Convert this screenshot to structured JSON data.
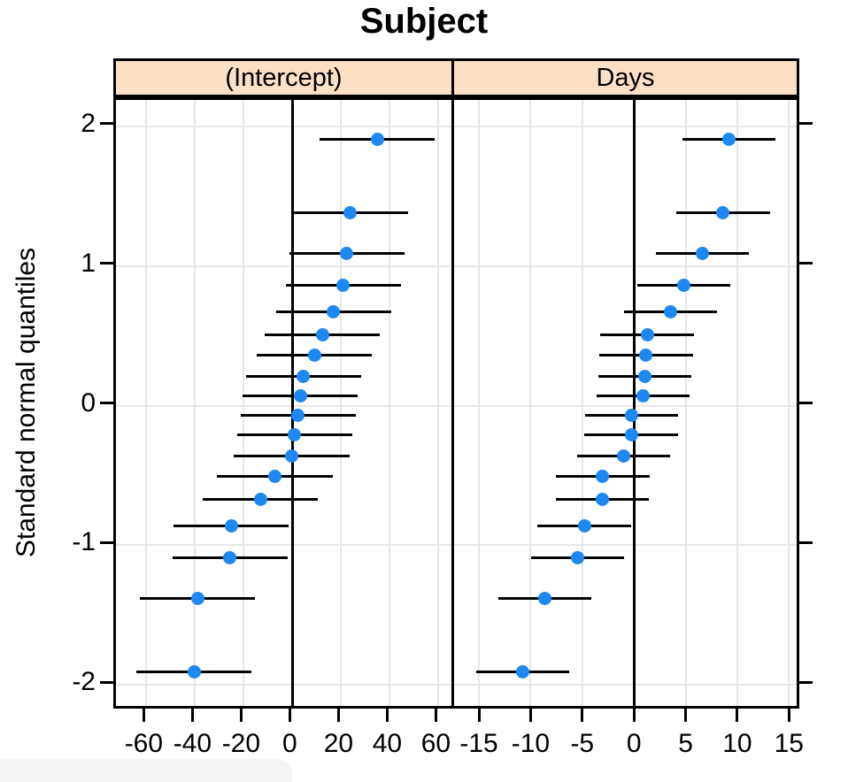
{
  "title": "Subject",
  "ylabel": "Standard normal quantiles",
  "colors": {
    "dot": "#1e88f2",
    "strip_bg": "#fbe0c4",
    "grid": "#e7e7e7",
    "line": "#000000"
  },
  "chart_data": {
    "type": "scatter",
    "subtype": "caterpillar-dotplot-with-error-bars",
    "title": "Subject",
    "ylabel": "Standard normal quantiles",
    "grid": true,
    "yticks": [
      -2,
      -1,
      0,
      1,
      2
    ],
    "ylim": [
      -2.19,
      2.19
    ],
    "quantiles": [
      -1.91,
      -1.38,
      -1.09,
      -0.86,
      -0.67,
      -0.51,
      -0.36,
      -0.21,
      -0.07,
      0.07,
      0.21,
      0.36,
      0.51,
      0.67,
      0.86,
      1.09,
      1.38,
      1.91
    ],
    "refline_x": 0,
    "panels": [
      {
        "label": "(Intercept)",
        "xticks": [
          -60,
          -40,
          -20,
          0,
          20,
          40,
          60
        ],
        "xlim": [
          -72.5,
          67.5
        ],
        "ci_halfwidth": 23.66,
        "values": [
          -40.4,
          -38.96,
          -25.61,
          -25.21,
          -13.07,
          -7.23,
          -0.33,
          0.81,
          2.26,
          3.28,
          4.58,
          9.04,
          12.31,
          16.84,
          20.86,
          22.26,
          23.69,
          34.89
        ]
      },
      {
        "label": "Days",
        "xticks": [
          -15,
          -10,
          -5,
          0,
          5,
          10,
          15
        ],
        "xlim": [
          -17.4,
          16.0
        ],
        "ci_halfwidth": 4.52,
        "values": [
          -10.75,
          -8.62,
          -5.45,
          -4.81,
          -3.07,
          -3.02,
          -0.99,
          -0.27,
          -0.22,
          0.87,
          1.07,
          1.17,
          1.28,
          3.54,
          4.82,
          6.61,
          8.63,
          9.2
        ]
      }
    ]
  }
}
